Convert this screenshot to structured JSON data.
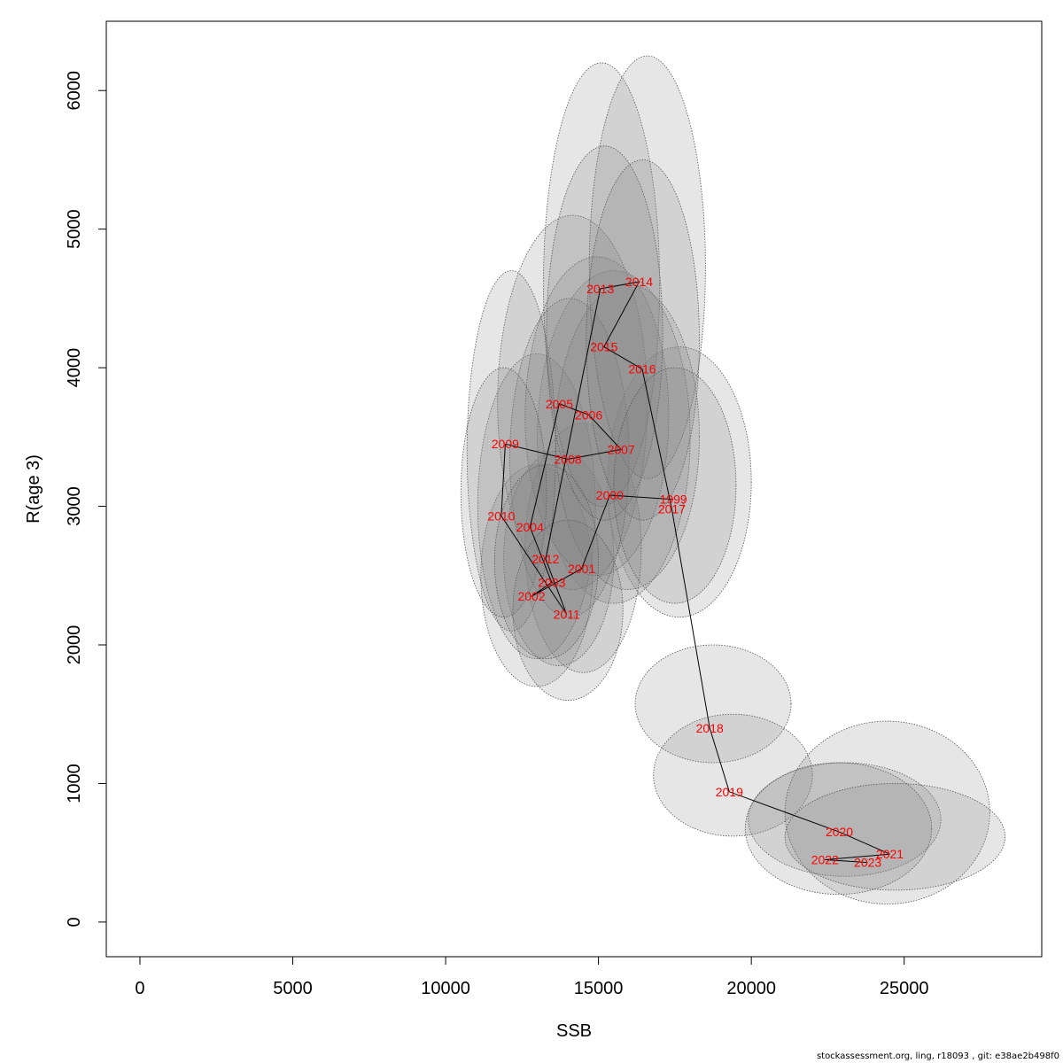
{
  "chart_data": {
    "type": "scatter",
    "xlabel": "SSB",
    "ylabel": "R(age 3)",
    "xlim": [
      -1100,
      29500
    ],
    "ylim": [
      -250,
      6500
    ],
    "xticks": [
      0,
      5000,
      10000,
      15000,
      20000,
      25000
    ],
    "yticks": [
      0,
      1000,
      2000,
      3000,
      4000,
      5000,
      6000
    ],
    "grid": false,
    "legend": "none",
    "label_color": "#ff0000",
    "ellipse_fill": "#808080",
    "ellipse_stroke": "#555555",
    "points": [
      {
        "year": "1999",
        "ssb": 17450,
        "r": 3050
      },
      {
        "year": "2000",
        "ssb": 15370,
        "r": 3080
      },
      {
        "year": "2001",
        "ssb": 14450,
        "r": 2550
      },
      {
        "year": "2002",
        "ssb": 12810,
        "r": 2350
      },
      {
        "year": "2003",
        "ssb": 13470,
        "r": 2450
      },
      {
        "year": "2004",
        "ssb": 12760,
        "r": 2850
      },
      {
        "year": "2005",
        "ssb": 13720,
        "r": 3740
      },
      {
        "year": "2006",
        "ssb": 14680,
        "r": 3660
      },
      {
        "year": "2007",
        "ssb": 15740,
        "r": 3410
      },
      {
        "year": "2008",
        "ssb": 14000,
        "r": 3340
      },
      {
        "year": "2009",
        "ssb": 11950,
        "r": 3450
      },
      {
        "year": "2010",
        "ssb": 11820,
        "r": 2930
      },
      {
        "year": "2011",
        "ssb": 13960,
        "r": 2220
      },
      {
        "year": "2012",
        "ssb": 13270,
        "r": 2620
      },
      {
        "year": "2013",
        "ssb": 15060,
        "r": 4570
      },
      {
        "year": "2014",
        "ssb": 16330,
        "r": 4620
      },
      {
        "year": "2015",
        "ssb": 15180,
        "r": 4150
      },
      {
        "year": "2016",
        "ssb": 16430,
        "r": 3990
      },
      {
        "year": "2017",
        "ssb": 17400,
        "r": 2980
      },
      {
        "year": "2018",
        "ssb": 18640,
        "r": 1400
      },
      {
        "year": "2019",
        "ssb": 19280,
        "r": 940
      },
      {
        "year": "2020",
        "ssb": 22880,
        "r": 650
      },
      {
        "year": "2021",
        "ssb": 24530,
        "r": 490
      },
      {
        "year": "2022",
        "ssb": 22410,
        "r": 450
      },
      {
        "year": "2023",
        "ssb": 23810,
        "r": 430
      }
    ],
    "path_order": [
      "1999",
      "2000",
      "2001",
      "2002",
      "2003",
      "2004",
      "2005",
      "2006",
      "2007",
      "2008",
      "2009",
      "2010",
      "2011",
      "2012",
      "2013",
      "2014",
      "2015",
      "2016",
      "2017",
      "2018",
      "2019",
      "2020",
      "2021",
      "2022",
      "2023"
    ],
    "confidence_regions": [
      {
        "year": "1999",
        "x_range": [
          15300,
          20000
        ],
        "y_range": [
          2200,
          4150
        ]
      },
      {
        "year": "2000",
        "x_range": [
          13000,
          18000
        ],
        "y_range": [
          2300,
          4700
        ]
      },
      {
        "year": "2001",
        "x_range": [
          12600,
          16400
        ],
        "y_range": [
          1800,
          3600
        ]
      },
      {
        "year": "2002",
        "x_range": [
          11150,
          14800
        ],
        "y_range": [
          1700,
          3300
        ]
      },
      {
        "year": "2003",
        "x_range": [
          11900,
          15500
        ],
        "y_range": [
          1850,
          3400
        ]
      },
      {
        "year": "2004",
        "x_range": [
          11050,
          14900
        ],
        "y_range": [
          1900,
          4100
        ]
      },
      {
        "year": "2005",
        "x_range": [
          11700,
          16600
        ],
        "y_range": [
          2400,
          5100
        ]
      },
      {
        "year": "2006",
        "x_range": [
          12600,
          17300
        ],
        "y_range": [
          2500,
          4800
        ]
      },
      {
        "year": "2007",
        "x_range": [
          13600,
          18300
        ],
        "y_range": [
          2400,
          4600
        ]
      },
      {
        "year": "2008",
        "x_range": [
          12100,
          16000
        ],
        "y_range": [
          2200,
          4500
        ]
      },
      {
        "year": "2009",
        "x_range": [
          10700,
          13600
        ],
        "y_range": [
          2100,
          4700
        ]
      },
      {
        "year": "2010",
        "x_range": [
          10500,
          13300
        ],
        "y_range": [
          2200,
          4000
        ]
      },
      {
        "year": "2011",
        "x_range": [
          12200,
          15800
        ],
        "y_range": [
          1600,
          2900
        ]
      },
      {
        "year": "2012",
        "x_range": [
          11600,
          15000
        ],
        "y_range": [
          1900,
          3300
        ]
      },
      {
        "year": "2013",
        "x_range": [
          13200,
          17000
        ],
        "y_range": [
          3000,
          6200
        ]
      },
      {
        "year": "2014",
        "x_range": [
          14700,
          18500
        ],
        "y_range": [
          3200,
          6250
        ]
      },
      {
        "year": "2015",
        "x_range": [
          13300,
          17100
        ],
        "y_range": [
          2900,
          5600
        ]
      },
      {
        "year": "2016",
        "x_range": [
          14600,
          18300
        ],
        "y_range": [
          2900,
          5500
        ]
      },
      {
        "year": "2017",
        "x_range": [
          15500,
          19500
        ],
        "y_range": [
          2300,
          4000
        ]
      },
      {
        "year": "2018",
        "x_range": [
          16200,
          21300
        ],
        "y_range": [
          1150,
          2000
        ]
      },
      {
        "year": "2019",
        "x_range": [
          16800,
          22000
        ],
        "y_range": [
          620,
          1500
        ]
      },
      {
        "year": "2020",
        "x_range": [
          19900,
          26200
        ],
        "y_range": [
          330,
          1150
        ]
      },
      {
        "year": "2021",
        "x_range": [
          21100,
          27800
        ],
        "y_range": [
          130,
          1450
        ]
      },
      {
        "year": "2022",
        "x_range": [
          19800,
          25900
        ],
        "y_range": [
          200,
          1150
        ]
      },
      {
        "year": "2023",
        "x_range": [
          21100,
          28300
        ],
        "y_range": [
          230,
          1000
        ]
      }
    ]
  },
  "footer": "stockassessment.org, ling, r18093 , git: e38ae2b498f0"
}
